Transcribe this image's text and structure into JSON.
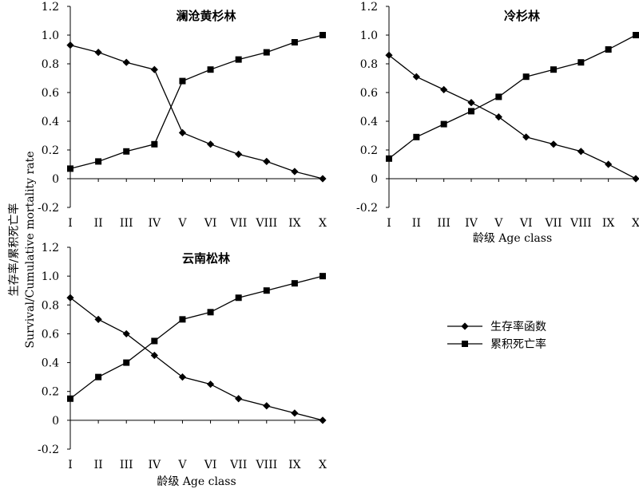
{
  "shared_ylabel": "生存率/累积死亡率\nSurvival/Cumulative mortality rate",
  "legend": {
    "placement": "right-bottom",
    "entries": [
      {
        "label": "生存率函数",
        "marker": "diamond"
      },
      {
        "label": "累积死亡率",
        "marker": "square"
      }
    ]
  },
  "chart_data": [
    {
      "type": "line",
      "title": "澜沧黄杉林",
      "xlabel": "",
      "ylabel": "",
      "categories": [
        "I",
        "II",
        "III",
        "IV",
        "V",
        "VI",
        "VII",
        "VIII",
        "IX",
        "X"
      ],
      "ylim": [
        -0.2,
        1.2
      ],
      "yticks": [
        "-0.2",
        "0",
        "0.2",
        "0.4",
        "0.6",
        "0.8",
        "1.0",
        "1.2"
      ],
      "grid": false,
      "series": [
        {
          "name": "生存率函数",
          "marker": "diamond",
          "values": [
            0.93,
            0.88,
            0.81,
            0.76,
            0.32,
            0.24,
            0.17,
            0.12,
            0.05,
            0.0
          ]
        },
        {
          "name": "累积死亡率",
          "marker": "square",
          "values": [
            0.07,
            0.12,
            0.19,
            0.24,
            0.68,
            0.76,
            0.83,
            0.88,
            0.95,
            1.0
          ]
        }
      ]
    },
    {
      "type": "line",
      "title": "冷杉林",
      "xlabel": "龄级 Age class",
      "ylabel": "",
      "categories": [
        "I",
        "II",
        "III",
        "IV",
        "V",
        "VI",
        "VII",
        "VIII",
        "IX",
        "X"
      ],
      "ylim": [
        -0.2,
        1.2
      ],
      "yticks": [
        "-0.2",
        "0",
        "0.2",
        "0.4",
        "0.6",
        "0.8",
        "1.0",
        "1.2"
      ],
      "grid": false,
      "series": [
        {
          "name": "生存率函数",
          "marker": "diamond",
          "values": [
            0.86,
            0.71,
            0.62,
            0.53,
            0.43,
            0.29,
            0.24,
            0.19,
            0.1,
            0.0
          ]
        },
        {
          "name": "累积死亡率",
          "marker": "square",
          "values": [
            0.14,
            0.29,
            0.38,
            0.47,
            0.57,
            0.71,
            0.76,
            0.81,
            0.9,
            1.0
          ]
        }
      ]
    },
    {
      "type": "line",
      "title": "云南松林",
      "xlabel": "龄级 Age class",
      "ylabel": "",
      "categories": [
        "I",
        "II",
        "III",
        "IV",
        "V",
        "VI",
        "VII",
        "VIII",
        "IX",
        "X"
      ],
      "ylim": [
        -0.2,
        1.2
      ],
      "yticks": [
        "-0.2",
        "0",
        "0.2",
        "0.4",
        "0.6",
        "0.8",
        "1.0",
        "1.2"
      ],
      "grid": false,
      "series": [
        {
          "name": "生存率函数",
          "marker": "diamond",
          "values": [
            0.85,
            0.7,
            0.6,
            0.45,
            0.3,
            0.25,
            0.15,
            0.1,
            0.05,
            0.0
          ]
        },
        {
          "name": "累积死亡率",
          "marker": "square",
          "values": [
            0.15,
            0.3,
            0.4,
            0.55,
            0.7,
            0.75,
            0.85,
            0.9,
            0.95,
            1.0
          ]
        }
      ]
    }
  ]
}
